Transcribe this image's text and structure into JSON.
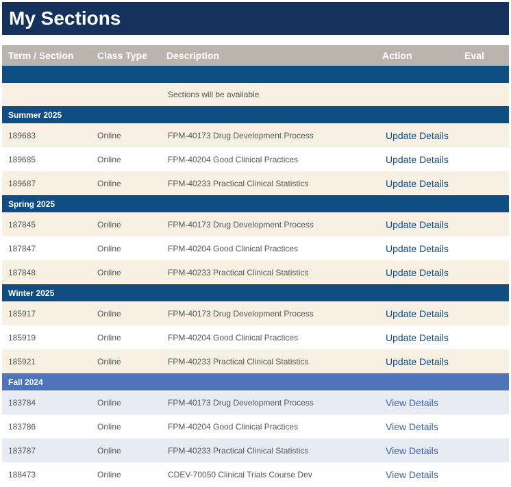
{
  "page": {
    "title": "My Sections"
  },
  "table": {
    "headers": {
      "term_section": "Term / Section",
      "class_type": "Class Type",
      "description": "Description",
      "action": "Action",
      "eval": "Eval"
    },
    "notice": "Sections will be available"
  },
  "terms": [
    {
      "name": "Summer 2025",
      "rows": [
        {
          "section": "189683",
          "type": "Online",
          "description": "FPM-40173 Drug Development Process",
          "action": "Update Details"
        },
        {
          "section": "189685",
          "type": "Online",
          "description": "FPM-40204 Good Clinical Practices",
          "action": "Update Details"
        },
        {
          "section": "189687",
          "type": "Online",
          "description": "FPM-40233 Practical Clinical Statistics",
          "action": "Update Details"
        }
      ]
    },
    {
      "name": "Spring 2025",
      "rows": [
        {
          "section": "187845",
          "type": "Online",
          "description": "FPM-40173 Drug Development Process",
          "action": "Update Details"
        },
        {
          "section": "187847",
          "type": "Online",
          "description": "FPM-40204 Good Clinical Practices",
          "action": "Update Details"
        },
        {
          "section": "187848",
          "type": "Online",
          "description": "FPM-40233 Practical Clinical Statistics",
          "action": "Update Details"
        }
      ]
    },
    {
      "name": "Winter 2025",
      "rows": [
        {
          "section": "185917",
          "type": "Online",
          "description": "FPM-40173 Drug Development Process",
          "action": "Update Details"
        },
        {
          "section": "185919",
          "type": "Online",
          "description": "FPM-40204 Good Clinical Practices",
          "action": "Update Details"
        },
        {
          "section": "185921",
          "type": "Online",
          "description": "FPM-40233 Practical Clinical Statistics",
          "action": "Update Details"
        }
      ]
    },
    {
      "name": "Fall 2024",
      "rows": [
        {
          "section": "183784",
          "type": "Online",
          "description": "FPM-40173 Drug Development Process",
          "action": "View Details"
        },
        {
          "section": "183786",
          "type": "Online",
          "description": "FPM-40204 Good Clinical Practices",
          "action": "View Details"
        },
        {
          "section": "183787",
          "type": "Online",
          "description": "FPM-40233 Practical Clinical Statistics",
          "action": "View Details"
        },
        {
          "section": "188473",
          "type": "Online",
          "description": "CDEV-70050 Clinical Trials Course Dev",
          "action": "View Details"
        }
      ]
    }
  ],
  "colors": {
    "title_bar": "#14325c",
    "header_row": "#b9b4ad",
    "term_current": "#104d82",
    "term_past": "#4f74b9",
    "row_current_alt": "#f9f0e4",
    "row_past_alt": "#e9ebf4",
    "link_update": "#0f4a80",
    "link_view": "#3c63a9"
  }
}
